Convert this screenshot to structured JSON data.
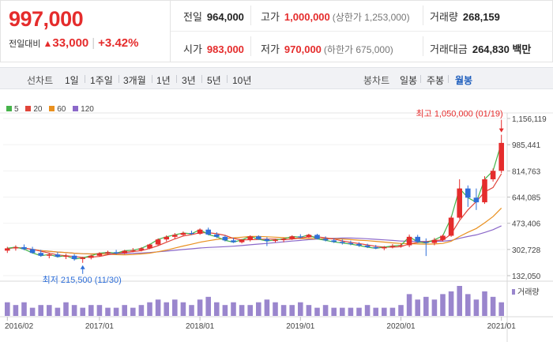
{
  "quote": {
    "price": "997,000",
    "change_label": "전일대비",
    "change_arrow": "▲",
    "change_value": "33,000",
    "change_rate": "+3.42%",
    "prev_close_label": "전일",
    "prev_close": "964,000",
    "high_label": "고가",
    "high": "1,000,000",
    "upper_limit": "(상한가 1,253,000)",
    "volume_label": "거래량",
    "volume": "268,159",
    "open_label": "시가",
    "open": "983,000",
    "low_label": "저가",
    "low": "970,000",
    "lower_limit": "(하한가 675,000)",
    "amount_label": "거래대금",
    "amount": "264,830 백만"
  },
  "toolbar": {
    "line_chart_label": "선차트",
    "line_periods": [
      "1일",
      "1주일",
      "3개월",
      "1년",
      "3년",
      "5년",
      "10년"
    ],
    "candle_chart_label": "봉차트",
    "candle_periods": [
      "일봉",
      "주봉",
      "월봉"
    ],
    "active_candle_period": "월봉"
  },
  "colors": {
    "up": "#e52c2c",
    "down": "#2f6fd9",
    "ma5": "#46b34a",
    "ma20": "#e0453a",
    "ma60": "#e9901f",
    "ma120": "#8b68c9",
    "volume": "#9a86cd"
  },
  "chart_data": {
    "type": "candlestick",
    "legend": [
      {
        "name": "5",
        "color": "#46b34a"
      },
      {
        "name": "20",
        "color": "#e0453a"
      },
      {
        "name": "60",
        "color": "#e9901f"
      },
      {
        "name": "120",
        "color": "#8b68c9"
      }
    ],
    "y_ticks": [
      "1,156,119",
      "985,441",
      "814,763",
      "644,085",
      "473,406",
      "302,728",
      "132,050"
    ],
    "ylim": [
      132050,
      1156119
    ],
    "x_ticks": [
      {
        "label": "2016/02",
        "index": 0
      },
      {
        "label": "2017/01",
        "index": 11
      },
      {
        "label": "2018/01",
        "index": 23
      },
      {
        "label": "2019/01",
        "index": 35
      },
      {
        "label": "2020/01",
        "index": 47
      },
      {
        "label": "2021/01",
        "index": 59
      }
    ],
    "max_annotation": "최고 1,050,000 (01/19)",
    "max_value": 1050000,
    "max_index": 59,
    "min_annotation": "최저 215,500 (11/30)",
    "min_value": 215500,
    "min_index": 9,
    "volume_label": "거래량",
    "candles": [
      {
        "o": 295000,
        "h": 320000,
        "l": 280000,
        "c": 310000
      },
      {
        "o": 310000,
        "h": 330000,
        "l": 295000,
        "c": 318000
      },
      {
        "o": 318000,
        "h": 335000,
        "l": 298000,
        "c": 305000
      },
      {
        "o": 305000,
        "h": 320000,
        "l": 275000,
        "c": 280000
      },
      {
        "o": 280000,
        "h": 300000,
        "l": 255000,
        "c": 262000
      },
      {
        "o": 262000,
        "h": 280000,
        "l": 245000,
        "c": 270000
      },
      {
        "o": 270000,
        "h": 285000,
        "l": 250000,
        "c": 255000
      },
      {
        "o": 255000,
        "h": 275000,
        "l": 240000,
        "c": 262000
      },
      {
        "o": 262000,
        "h": 272000,
        "l": 230000,
        "c": 240000
      },
      {
        "o": 240000,
        "h": 255000,
        "l": 215500,
        "c": 248000
      },
      {
        "o": 248000,
        "h": 268000,
        "l": 238000,
        "c": 262000
      },
      {
        "o": 262000,
        "h": 285000,
        "l": 255000,
        "c": 278000
      },
      {
        "o": 278000,
        "h": 295000,
        "l": 268000,
        "c": 285000
      },
      {
        "o": 285000,
        "h": 300000,
        "l": 270000,
        "c": 278000
      },
      {
        "o": 278000,
        "h": 300000,
        "l": 272000,
        "c": 294000
      },
      {
        "o": 294000,
        "h": 312000,
        "l": 285000,
        "c": 298000
      },
      {
        "o": 298000,
        "h": 318000,
        "l": 290000,
        "c": 310000
      },
      {
        "o": 310000,
        "h": 340000,
        "l": 305000,
        "c": 335000
      },
      {
        "o": 335000,
        "h": 375000,
        "l": 328000,
        "c": 368000
      },
      {
        "o": 368000,
        "h": 395000,
        "l": 355000,
        "c": 385000
      },
      {
        "o": 385000,
        "h": 410000,
        "l": 372000,
        "c": 398000
      },
      {
        "o": 398000,
        "h": 420000,
        "l": 388000,
        "c": 410000
      },
      {
        "o": 410000,
        "h": 425000,
        "l": 398000,
        "c": 405000
      },
      {
        "o": 405000,
        "h": 440000,
        "l": 398000,
        "c": 432000
      },
      {
        "o": 432000,
        "h": 445000,
        "l": 395000,
        "c": 400000
      },
      {
        "o": 400000,
        "h": 415000,
        "l": 378000,
        "c": 385000
      },
      {
        "o": 385000,
        "h": 395000,
        "l": 355000,
        "c": 362000
      },
      {
        "o": 362000,
        "h": 378000,
        "l": 345000,
        "c": 350000
      },
      {
        "o": 350000,
        "h": 372000,
        "l": 342000,
        "c": 365000
      },
      {
        "o": 365000,
        "h": 395000,
        "l": 355000,
        "c": 388000
      },
      {
        "o": 388000,
        "h": 395000,
        "l": 365000,
        "c": 370000
      },
      {
        "o": 370000,
        "h": 382000,
        "l": 325000,
        "c": 358000
      },
      {
        "o": 358000,
        "h": 372000,
        "l": 348000,
        "c": 365000
      },
      {
        "o": 365000,
        "h": 378000,
        "l": 350000,
        "c": 372000
      },
      {
        "o": 372000,
        "h": 395000,
        "l": 365000,
        "c": 388000
      },
      {
        "o": 388000,
        "h": 402000,
        "l": 375000,
        "c": 382000
      },
      {
        "o": 382000,
        "h": 405000,
        "l": 378000,
        "c": 398000
      },
      {
        "o": 398000,
        "h": 405000,
        "l": 368000,
        "c": 372000
      },
      {
        "o": 372000,
        "h": 388000,
        "l": 355000,
        "c": 362000
      },
      {
        "o": 362000,
        "h": 375000,
        "l": 345000,
        "c": 352000
      },
      {
        "o": 352000,
        "h": 368000,
        "l": 335000,
        "c": 345000
      },
      {
        "o": 345000,
        "h": 360000,
        "l": 330000,
        "c": 338000
      },
      {
        "o": 338000,
        "h": 350000,
        "l": 320000,
        "c": 328000
      },
      {
        "o": 328000,
        "h": 340000,
        "l": 312000,
        "c": 318000
      },
      {
        "o": 318000,
        "h": 332000,
        "l": 305000,
        "c": 310000
      },
      {
        "o": 310000,
        "h": 325000,
        "l": 298000,
        "c": 318000
      },
      {
        "o": 318000,
        "h": 338000,
        "l": 310000,
        "c": 325000
      },
      {
        "o": 325000,
        "h": 342000,
        "l": 315000,
        "c": 330000
      },
      {
        "o": 330000,
        "h": 400000,
        "l": 318000,
        "c": 385000
      },
      {
        "o": 385000,
        "h": 398000,
        "l": 345000,
        "c": 352000
      },
      {
        "o": 352000,
        "h": 375000,
        "l": 260000,
        "c": 345000
      },
      {
        "o": 345000,
        "h": 378000,
        "l": 330000,
        "c": 365000
      },
      {
        "o": 365000,
        "h": 400000,
        "l": 355000,
        "c": 392000
      },
      {
        "o": 392000,
        "h": 520000,
        "l": 385000,
        "c": 510000
      },
      {
        "o": 510000,
        "h": 760000,
        "l": 500000,
        "c": 700000
      },
      {
        "o": 700000,
        "h": 720000,
        "l": 580000,
        "c": 640000
      },
      {
        "o": 640000,
        "h": 700000,
        "l": 560000,
        "c": 610000
      },
      {
        "o": 610000,
        "h": 780000,
        "l": 600000,
        "c": 760000
      },
      {
        "o": 760000,
        "h": 830000,
        "l": 745000,
        "c": 815000
      },
      {
        "o": 815000,
        "h": 1050000,
        "l": 800000,
        "c": 997000
      }
    ],
    "volumes": [
      5,
      4,
      5,
      3,
      4,
      4,
      3,
      5,
      4,
      3,
      4,
      4,
      3,
      3,
      4,
      3,
      4,
      5,
      6,
      5,
      6,
      5,
      4,
      6,
      7,
      5,
      4,
      5,
      4,
      4,
      5,
      6,
      5,
      4,
      4,
      5,
      4,
      3,
      4,
      3,
      3,
      3,
      3,
      4,
      3,
      3,
      3,
      4,
      8,
      6,
      7,
      6,
      8,
      9,
      11,
      8,
      6,
      9,
      7,
      5
    ]
  }
}
